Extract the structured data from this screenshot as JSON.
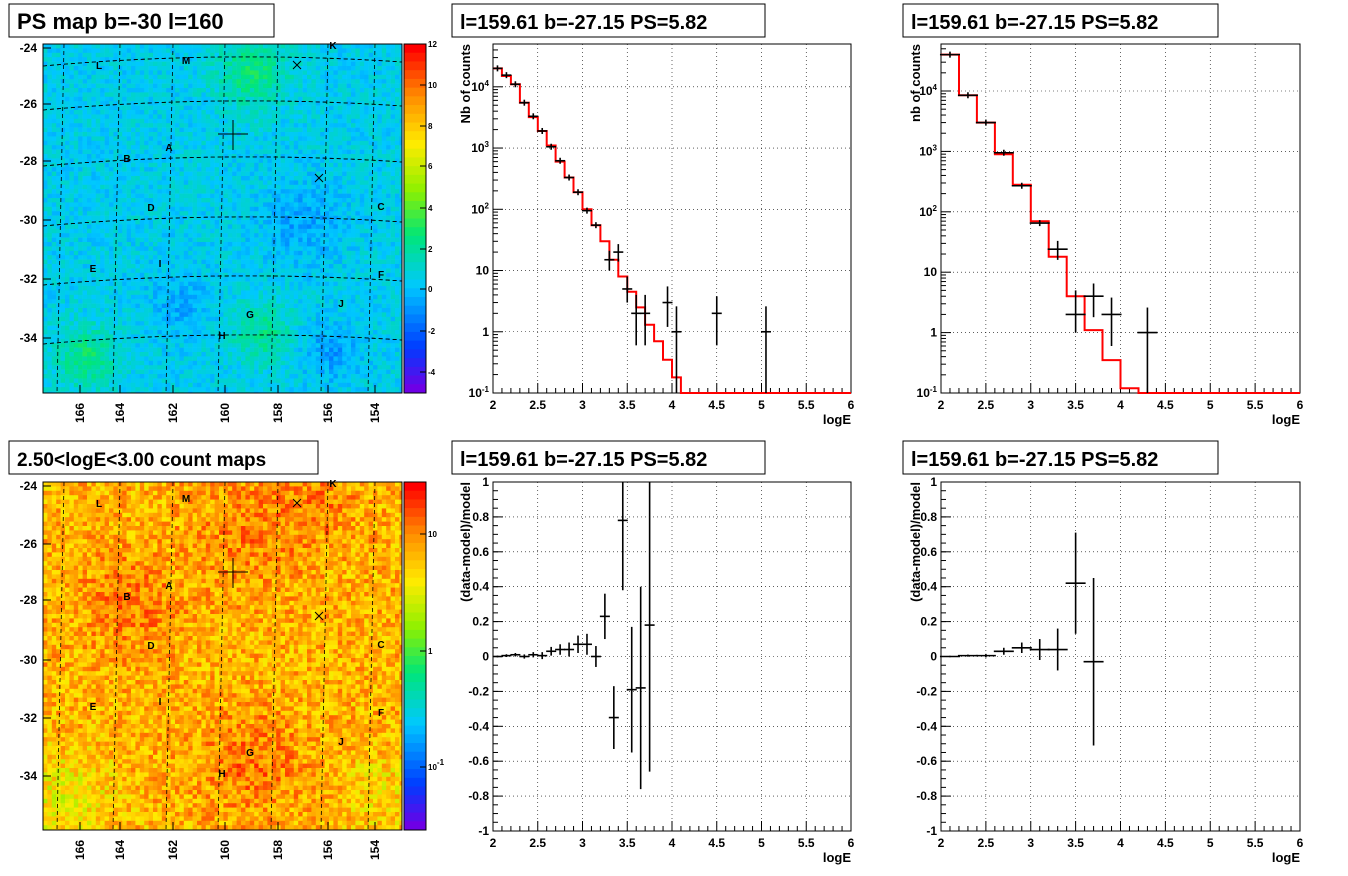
{
  "panels": {
    "ps_map": {
      "title": "PS map b=-30 l=160",
      "type": "heatmap",
      "x_tick_labels": [
        "166",
        "164",
        "162",
        "160",
        "158",
        "156",
        "154"
      ],
      "y_tick_labels": [
        "-24",
        "-26",
        "-28",
        "-30",
        "-32",
        "-34"
      ],
      "colorbar_tick_labels": [
        "-4",
        "-2",
        "0",
        "2",
        "4",
        "6",
        "8",
        "10",
        "12"
      ],
      "source_labels": [
        "L",
        "M",
        "K",
        "A",
        "B",
        "D",
        "C",
        "E",
        "I",
        "F",
        "J",
        "G",
        "H"
      ]
    },
    "count_map": {
      "title": "2.50<logE<3.00 count maps",
      "type": "heatmap",
      "x_tick_labels": [
        "166",
        "164",
        "162",
        "160",
        "158",
        "156",
        "154"
      ],
      "y_tick_labels": [
        "-24",
        "-26",
        "-28",
        "-30",
        "-32",
        "-34"
      ],
      "colorbar_tick_labels": [
        "10",
        "1",
        "10-1"
      ],
      "source_labels": [
        "L",
        "M",
        "K",
        "A",
        "B",
        "D",
        "C",
        "E",
        "I",
        "F",
        "J",
        "G",
        "H"
      ]
    }
  },
  "chart_data": [
    {
      "id": "spectrum-left",
      "type": "line",
      "title": "l=159.61 b=-27.15 PS=5.82",
      "xlabel": "logE",
      "ylabel": "Nb of counts",
      "xlim": [
        2,
        6
      ],
      "ylim": [
        0.1,
        50000
      ],
      "log_y": true,
      "grid": true,
      "x_tick_labels": [
        "2",
        "2.5",
        "3",
        "3.5",
        "4",
        "4.5",
        "5",
        "5.5",
        "6"
      ],
      "y_tick_labels": [
        "10-1",
        "1",
        "10",
        "10^2",
        "10^3",
        "10^4"
      ],
      "model_color": "#ff0000",
      "data_color": "#000000",
      "model_step": {
        "edges": [
          2.0,
          2.1,
          2.2,
          2.3,
          2.4,
          2.5,
          2.6,
          2.7,
          2.8,
          2.9,
          3.0,
          3.1,
          3.2,
          3.3,
          3.4,
          3.5,
          3.6,
          3.7,
          3.8,
          3.9,
          4.0,
          4.1,
          4.2,
          4.3,
          6.0
        ],
        "values": [
          20000,
          15000,
          11000,
          5500,
          3200,
          1900,
          1100,
          600,
          330,
          190,
          100,
          55,
          30,
          15,
          8,
          4.5,
          2.5,
          1.3,
          0.7,
          0.35,
          0.18,
          0.1,
          0.1,
          0.1
        ]
      },
      "data_points": [
        {
          "x": 2.05,
          "y": 20000
        },
        {
          "x": 2.15,
          "y": 15500
        },
        {
          "x": 2.25,
          "y": 11000
        },
        {
          "x": 2.35,
          "y": 5500
        },
        {
          "x": 2.45,
          "y": 3300
        },
        {
          "x": 2.55,
          "y": 1900
        },
        {
          "x": 2.65,
          "y": 1050
        },
        {
          "x": 2.75,
          "y": 620
        },
        {
          "x": 2.85,
          "y": 330
        },
        {
          "x": 2.95,
          "y": 190
        },
        {
          "x": 3.05,
          "y": 95
        },
        {
          "x": 3.15,
          "y": 55
        },
        {
          "x": 3.3,
          "y": 15,
          "ylo": 10,
          "yhi": 21
        },
        {
          "x": 3.4,
          "y": 20,
          "ylo": 14,
          "yhi": 27
        },
        {
          "x": 3.5,
          "y": 5,
          "ylo": 3,
          "yhi": 8
        },
        {
          "x": 3.6,
          "y": 2,
          "ylo": 0.6,
          "yhi": 4
        },
        {
          "x": 3.7,
          "y": 2,
          "ylo": 0.6,
          "yhi": 4
        },
        {
          "x": 3.95,
          "y": 3,
          "ylo": 1.2,
          "yhi": 5.5
        },
        {
          "x": 4.05,
          "y": 1,
          "ylo": 0.1,
          "yhi": 2.6
        },
        {
          "x": 4.5,
          "y": 2,
          "ylo": 0.6,
          "yhi": 3.8
        },
        {
          "x": 5.05,
          "y": 1,
          "ylo": 0.1,
          "yhi": 2.6
        }
      ]
    },
    {
      "id": "spectrum-right",
      "type": "line",
      "title": "l=159.61 b=-27.15 PS=5.82",
      "xlabel": "logE",
      "ylabel": "nb of counts",
      "xlim": [
        2,
        6
      ],
      "ylim": [
        0.1,
        60000
      ],
      "log_y": true,
      "grid": true,
      "x_tick_labels": [
        "2",
        "2.5",
        "3",
        "3.5",
        "4",
        "4.5",
        "5",
        "5.5",
        "6"
      ],
      "y_tick_labels": [
        "10-1",
        "1",
        "10",
        "10^2",
        "10^3",
        "10^4"
      ],
      "model_color": "#ff0000",
      "data_color": "#000000",
      "model_step": {
        "edges": [
          2.0,
          2.2,
          2.4,
          2.6,
          2.8,
          3.0,
          3.2,
          3.4,
          3.6,
          3.8,
          4.0,
          4.2,
          4.4,
          6.0
        ],
        "values": [
          40000,
          8500,
          3000,
          900,
          280,
          70,
          18,
          4,
          1.1,
          0.35,
          0.12,
          0.1,
          0.1
        ]
      },
      "data_points": [
        {
          "x": 2.1,
          "y": 40000
        },
        {
          "x": 2.3,
          "y": 8500
        },
        {
          "x": 2.5,
          "y": 3000
        },
        {
          "x": 2.7,
          "y": 950
        },
        {
          "x": 2.9,
          "y": 270
        },
        {
          "x": 3.1,
          "y": 65
        },
        {
          "x": 3.3,
          "y": 24,
          "ylo": 16,
          "yhi": 33
        },
        {
          "x": 3.5,
          "y": 2,
          "ylo": 1,
          "yhi": 5
        },
        {
          "x": 3.7,
          "y": 4,
          "ylo": 1.8,
          "yhi": 6.5
        },
        {
          "x": 3.9,
          "y": 2,
          "ylo": 0.6,
          "yhi": 3.8
        },
        {
          "x": 4.3,
          "y": 1,
          "ylo": 0.1,
          "yhi": 2.6
        }
      ]
    },
    {
      "id": "residual-left",
      "type": "scatter",
      "title": "l=159.61 b=-27.15 PS=5.82",
      "xlabel": "logE",
      "ylabel": "(data-model)/model",
      "xlim": [
        2,
        6
      ],
      "ylim": [
        -1,
        1
      ],
      "grid": true,
      "x_tick_labels": [
        "2",
        "2.5",
        "3",
        "3.5",
        "4",
        "4.5",
        "5",
        "5.5",
        "6"
      ],
      "y_tick_labels": [
        "-1",
        "-0.8",
        "-0.6",
        "-0.4",
        "-0.2",
        "0",
        "0.2",
        "0.4",
        "0.6",
        "0.8",
        "1"
      ],
      "data_color": "#000000",
      "data_points": [
        {
          "x": 2.05,
          "y": 0.0,
          "err": 0.005
        },
        {
          "x": 2.15,
          "y": 0.005,
          "err": 0.008
        },
        {
          "x": 2.25,
          "y": 0.01,
          "err": 0.01
        },
        {
          "x": 2.35,
          "y": 0.0,
          "err": 0.012
        },
        {
          "x": 2.45,
          "y": 0.01,
          "err": 0.015
        },
        {
          "x": 2.55,
          "y": 0.005,
          "err": 0.02
        },
        {
          "x": 2.65,
          "y": 0.03,
          "err": 0.025
        },
        {
          "x": 2.75,
          "y": 0.04,
          "err": 0.03
        },
        {
          "x": 2.85,
          "y": 0.04,
          "err": 0.04
        },
        {
          "x": 2.95,
          "y": 0.07,
          "err": 0.05
        },
        {
          "x": 3.05,
          "y": 0.07,
          "err": 0.06
        },
        {
          "x": 3.15,
          "y": 0.0,
          "err": 0.06
        },
        {
          "x": 3.25,
          "y": 0.23,
          "err": 0.13
        },
        {
          "x": 3.35,
          "y": -0.35,
          "err": 0.18
        },
        {
          "x": 3.45,
          "y": 0.78,
          "err": 0.4
        },
        {
          "x": 3.55,
          "y": -0.19,
          "err": 0.36
        },
        {
          "x": 3.65,
          "y": -0.18,
          "err": 0.58
        },
        {
          "x": 3.75,
          "y": 0.18,
          "err": 0.84
        }
      ]
    },
    {
      "id": "residual-right",
      "type": "scatter",
      "title": "l=159.61 b=-27.15 PS=5.82",
      "xlabel": "logE",
      "ylabel": "(data-model)/model",
      "xlim": [
        2,
        6
      ],
      "ylim": [
        -1,
        1
      ],
      "grid": true,
      "x_tick_labels": [
        "2",
        "2.5",
        "3",
        "3.5",
        "4",
        "4.5",
        "5",
        "5.5",
        "6"
      ],
      "y_tick_labels": [
        "-1",
        "-0.8",
        "-0.6",
        "-0.4",
        "-0.2",
        "0",
        "0.2",
        "0.4",
        "0.6",
        "0.8",
        "1"
      ],
      "data_color": "#000000",
      "data_points": [
        {
          "x": 2.1,
          "y": 0.0,
          "err": 0.004
        },
        {
          "x": 2.3,
          "y": 0.005,
          "err": 0.006
        },
        {
          "x": 2.5,
          "y": 0.005,
          "err": 0.01
        },
        {
          "x": 2.7,
          "y": 0.03,
          "err": 0.02
        },
        {
          "x": 2.9,
          "y": 0.05,
          "err": 0.03
        },
        {
          "x": 3.1,
          "y": 0.04,
          "err": 0.06
        },
        {
          "x": 3.3,
          "y": 0.04,
          "err": 0.12
        },
        {
          "x": 3.5,
          "y": 0.42,
          "err": 0.29
        },
        {
          "x": 3.7,
          "y": -0.03,
          "err": 0.48
        }
      ]
    }
  ]
}
